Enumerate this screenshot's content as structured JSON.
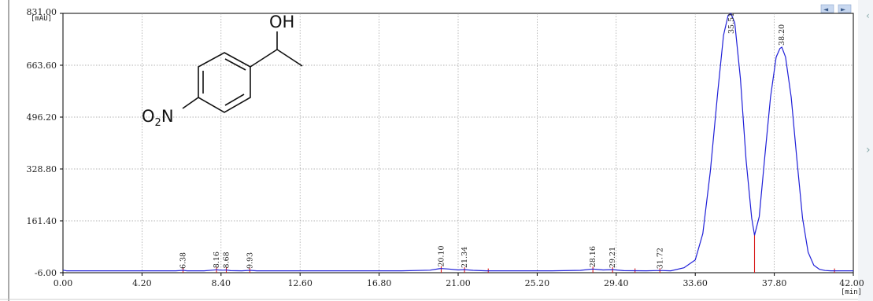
{
  "chart_data": {
    "type": "line",
    "title": "",
    "xlabel": "",
    "ylabel": "",
    "x_unit": "[min]",
    "y_unit": "[mAU]",
    "xlim": [
      0,
      42
    ],
    "ylim": [
      -6,
      831
    ],
    "x_ticks": [
      "0.00",
      "4.20",
      "8.40",
      "12.60",
      "16.80",
      "21.00",
      "25.20",
      "29.40",
      "33.60",
      "37.80",
      "42.00"
    ],
    "y_ticks": [
      "831.00",
      "663.60",
      "496.20",
      "328.80",
      "161.40",
      "-6.00"
    ],
    "grid": true,
    "series": [
      {
        "color": "#1f1fd8",
        "x": [
          0.0,
          0.2,
          2.0,
          4.0,
          6.0,
          6.38,
          6.6,
          7.5,
          8.16,
          8.3,
          8.5,
          8.68,
          8.9,
          9.5,
          9.93,
          10.3,
          12.0,
          14.0,
          16.0,
          18.0,
          19.5,
          20.0,
          20.1,
          20.5,
          21.0,
          21.34,
          21.8,
          22.5,
          24.0,
          26.0,
          27.5,
          28.16,
          28.7,
          29.21,
          29.8,
          31.0,
          31.72,
          32.3,
          33.0,
          33.6,
          34.0,
          34.4,
          34.8,
          35.1,
          35.35,
          35.5,
          35.7,
          36.0,
          36.3,
          36.6,
          36.75,
          37.0,
          37.3,
          37.6,
          37.9,
          38.1,
          38.2,
          38.4,
          38.7,
          39.0,
          39.3,
          39.6,
          39.9,
          40.2,
          40.5,
          40.8,
          41.2,
          42.0
        ],
        "y": [
          2,
          0,
          0,
          0,
          0,
          1.5,
          0,
          0,
          3.5,
          2.5,
          2,
          3,
          0.5,
          0,
          1.5,
          0,
          0,
          0,
          0,
          0,
          2,
          7,
          7.5,
          6,
          3,
          4,
          1.5,
          0,
          0,
          0,
          1.5,
          6,
          3,
          4,
          0.5,
          0,
          1,
          0,
          10,
          35,
          120,
          320,
          580,
          760,
          825,
          830,
          800,
          620,
          360,
          170,
          115,
          175,
          370,
          560,
          690,
          718,
          722,
          690,
          560,
          360,
          170,
          60,
          18,
          5,
          1,
          0,
          0,
          0
        ]
      }
    ],
    "peaks": [
      {
        "label": "6.38",
        "x": 6.38
      },
      {
        "label": "8.16",
        "x": 8.16
      },
      {
        "label": "8.68",
        "x": 8.68
      },
      {
        "label": "9.93",
        "x": 9.93
      },
      {
        "label": "20.10",
        "x": 20.1
      },
      {
        "label": "21.34",
        "x": 21.34
      },
      {
        "label": "28.16",
        "x": 28.16
      },
      {
        "label": "29.21",
        "x": 29.21
      },
      {
        "label": "31.72",
        "x": 31.72
      },
      {
        "label": "35.51",
        "x": 35.51
      },
      {
        "label": "38.20",
        "x": 38.2
      }
    ],
    "marker_color": "#d81b1b",
    "integration_markers_x": [
      6.38,
      8.16,
      8.68,
      9.93,
      20.1,
      21.34,
      22.6,
      28.16,
      29.21,
      30.4,
      31.72,
      36.75,
      41.0
    ]
  },
  "structure": {
    "oh_label": "OH",
    "nitro_o": "O",
    "nitro_sub": "2",
    "nitro_n": "N"
  },
  "ui": {
    "nav_left_glyph": "◄",
    "nav_right_glyph": "►"
  }
}
